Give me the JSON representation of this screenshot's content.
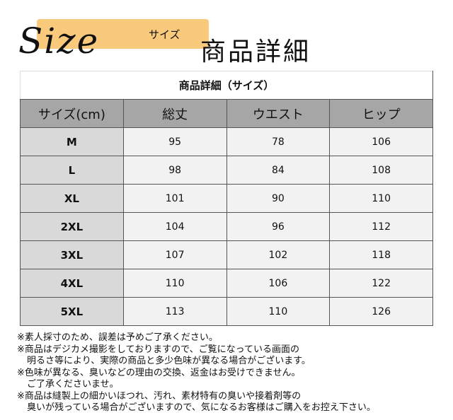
{
  "header": {
    "logo": "Size",
    "subtitle": "サイズ",
    "title": "商品詳細",
    "accent": "#f9c97c"
  },
  "table": {
    "caption": "商品詳細（サイズ）",
    "columns": [
      "サイズ(cm)",
      "総丈",
      "ウエスト",
      "ヒップ"
    ],
    "rows": [
      [
        "M",
        "95",
        "78",
        "106"
      ],
      [
        "L",
        "98",
        "84",
        "108"
      ],
      [
        "XL",
        "101",
        "90",
        "110"
      ],
      [
        "2XL",
        "104",
        "96",
        "112"
      ],
      [
        "3XL",
        "107",
        "102",
        "118"
      ],
      [
        "4XL",
        "110",
        "106",
        "122"
      ],
      [
        "5XL",
        "113",
        "110",
        "126"
      ]
    ]
  },
  "notes": [
    "※素人採寸のため、誤差は予めご了承ください。",
    "※商品はデジカメ撮影をしておりますので、ご覧になっている画面の",
    "明るさ等により、実際の商品と多少色味が異なる場合がございます。",
    "※色味が異なる、臭いなどの理由の交換、返金はお受けできません。",
    "ご了承くださいませ。",
    "※商品は縫製上の細かいほつれ、汚れ、素材特有の臭いや接着剤等の",
    "臭いが残っている場合がございますので、気になるお客様はご購入をお控え下さい。"
  ]
}
